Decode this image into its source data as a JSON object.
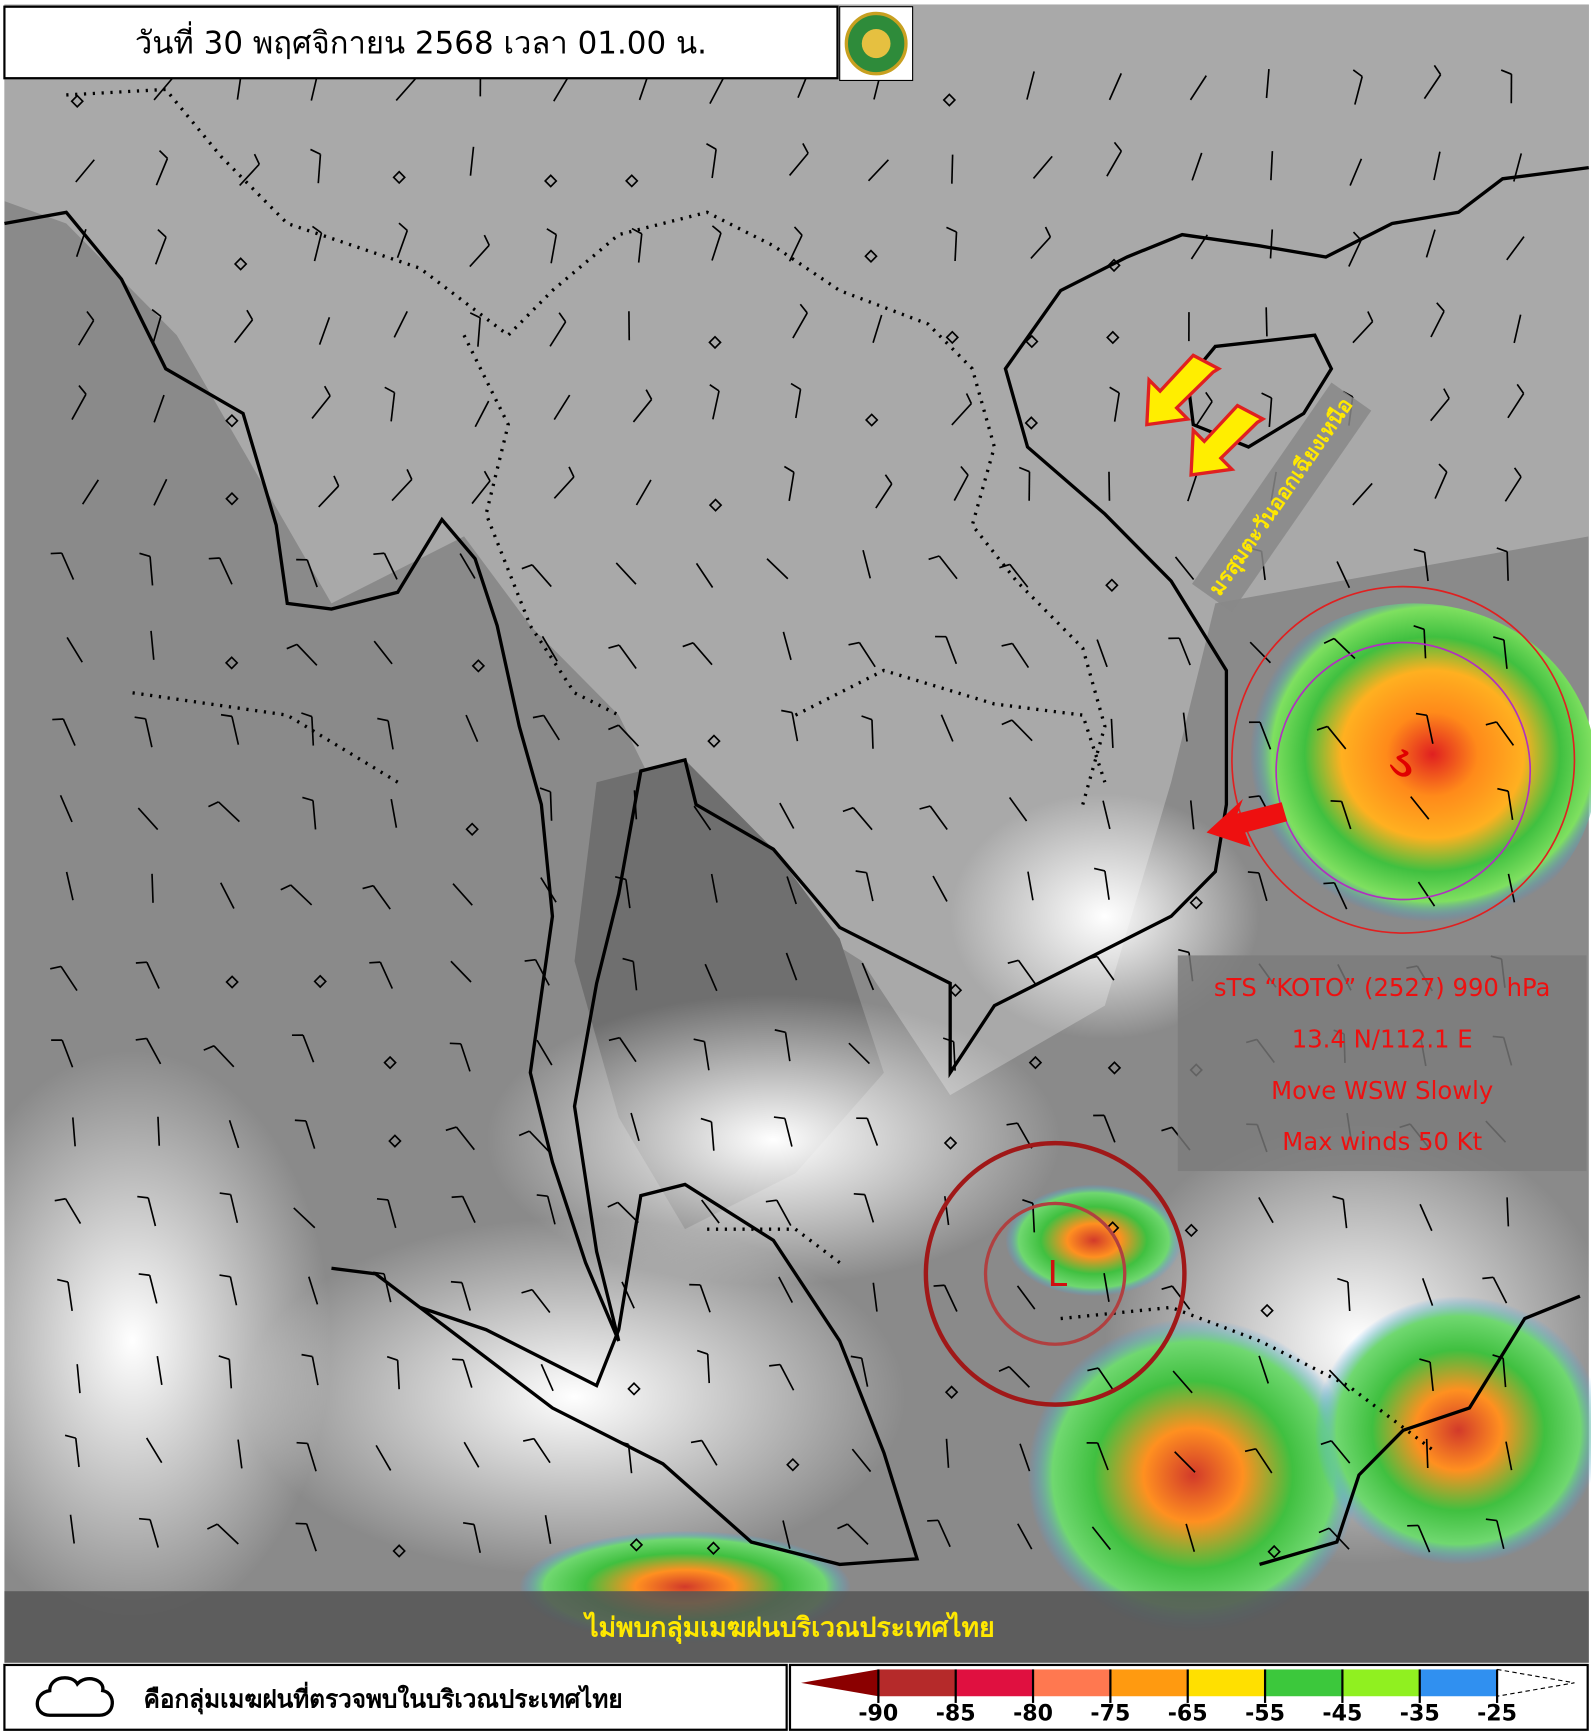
{
  "header": {
    "date_text": "วันที่ 30 พฤศจิกายน 2568 เวลา 01.00 น."
  },
  "annotations": {
    "monsoon": "มรสุมตะวันออกเฉียงเหนือ",
    "storm_info": [
      "sTS “KOTO” (2527) 990 hPa",
      "13.4 N/112.1 E",
      "Move WSW Slowly",
      "Max winds 50 Kt"
    ],
    "low_marker": "L",
    "status_banner": "ไม่พบกลุ่มเมฆฝนบริเวณประเทศไทย"
  },
  "legend": {
    "cloud_text": "คือกลุ่มเมฆฝนที่ตรวจพบในบริเวณประเทศไทย",
    "colorbar_ticks": [
      -90,
      -85,
      -80,
      -75,
      -65,
      -55,
      -45,
      -35,
      -25
    ]
  }
}
